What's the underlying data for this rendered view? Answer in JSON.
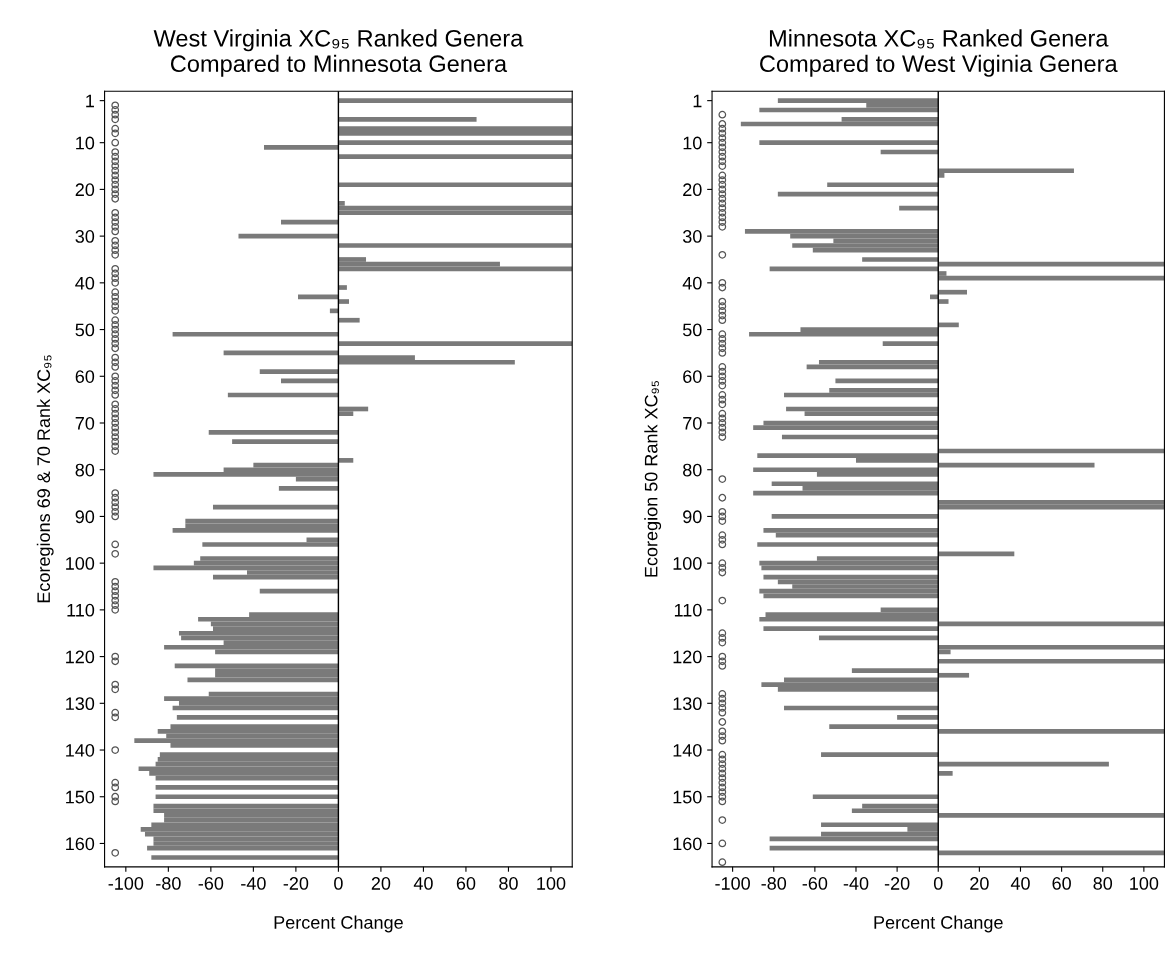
{
  "chart_data": [
    {
      "type": "bar",
      "orientation": "horizontal",
      "title": "West Virginia XC₉₅ Ranked Genera\nCompared to Minnesota Genera",
      "xlabel": "Percent Change",
      "ylabel": "Ecoregions 69 & 70 Rank XC₉₅",
      "xlim": [
        -110,
        110
      ],
      "xticks": [
        -100,
        -80,
        -60,
        -40,
        -20,
        0,
        20,
        40,
        60,
        80,
        100
      ],
      "ylim": [
        165,
        -1
      ],
      "yticks": [
        1,
        10,
        20,
        30,
        40,
        50,
        60,
        70,
        80,
        90,
        100,
        110,
        120,
        130,
        140,
        150,
        160
      ],
      "series": [
        {
          "color": "#7a7a7a",
          "x": [
            1,
            5,
            7,
            8,
            10,
            11,
            13,
            19,
            23,
            24,
            25,
            27,
            30,
            32,
            35,
            36,
            37,
            41,
            43,
            44,
            46,
            48,
            51,
            53,
            55,
            56,
            57,
            59,
            61,
            64,
            67,
            68,
            72,
            74,
            78,
            79,
            80,
            81,
            82,
            84,
            88,
            91,
            92,
            93,
            95,
            96,
            99,
            100,
            101,
            102,
            103,
            106,
            111,
            112,
            113,
            114,
            115,
            116,
            117,
            118,
            119,
            122,
            123,
            124,
            125,
            128,
            129,
            130,
            131,
            133,
            135,
            136,
            137,
            138,
            139,
            141,
            142,
            143,
            144,
            145,
            146,
            148,
            150,
            152,
            153,
            154,
            155,
            156,
            157,
            158,
            159,
            160,
            161,
            163
          ],
          "values": [
            110,
            65,
            110,
            110,
            110,
            -35,
            110,
            110,
            3,
            110,
            110,
            -27,
            -47,
            110,
            13,
            76,
            110,
            4,
            -19,
            5,
            -4,
            10,
            -78,
            110,
            -54,
            36,
            83,
            -37,
            -27,
            -52,
            14,
            7,
            -61,
            -50,
            7,
            -40,
            -54,
            -87,
            -20,
            -28,
            -59,
            -72,
            -72,
            -78,
            -15,
            -64,
            -65,
            -68,
            -87,
            -43,
            -59,
            -37,
            -42,
            -66,
            -60,
            -59,
            -75,
            -74,
            -54,
            -82,
            -58,
            -77,
            -58,
            -58,
            -71,
            -61,
            -82,
            -75,
            -78,
            -76,
            -79,
            -85,
            -81,
            -96,
            -79,
            -84,
            -85,
            -86,
            -94,
            -89,
            -86,
            -86,
            -86,
            -87,
            -87,
            -82,
            -82,
            -88,
            -93,
            -91,
            -87,
            -87,
            -90,
            -88
          ]
        },
        {
          "type": "scatter",
          "color": "#555555",
          "marker": "circle",
          "x": [
            2,
            3,
            4,
            5,
            7,
            8,
            10,
            12,
            13,
            14,
            15,
            16,
            17,
            18,
            19,
            20,
            21,
            22,
            25,
            26,
            27,
            28,
            29,
            31,
            32,
            33,
            34,
            37,
            38,
            39,
            40,
            42,
            43,
            44,
            45,
            46,
            48,
            49,
            50,
            51,
            52,
            53,
            54,
            56,
            57,
            58,
            60,
            61,
            62,
            63,
            64,
            66,
            67,
            68,
            69,
            70,
            71,
            72,
            73,
            74,
            75,
            76,
            85,
            86,
            87,
            88,
            89,
            90,
            96,
            98,
            104,
            105,
            106,
            107,
            108,
            109,
            110,
            120,
            121,
            126,
            127,
            132,
            133,
            140,
            147,
            148,
            150,
            151,
            162
          ],
          "values": [
            -105,
            -105,
            -105,
            -105,
            -105,
            -105,
            -105,
            -105,
            -105,
            -105,
            -105,
            -105,
            -105,
            -105,
            -105,
            -105,
            -105,
            -105,
            -105,
            -105,
            -105,
            -105,
            -105,
            -105,
            -105,
            -105,
            -105,
            -105,
            -105,
            -105,
            -105,
            -105,
            -105,
            -105,
            -105,
            -105,
            -105,
            -105,
            -105,
            -105,
            -105,
            -105,
            -105,
            -105,
            -105,
            -105,
            -105,
            -105,
            -105,
            -105,
            -105,
            -105,
            -105,
            -105,
            -105,
            -105,
            -105,
            -105,
            -105,
            -105,
            -105,
            -105,
            -105,
            -105,
            -105,
            -105,
            -105,
            -105,
            -105,
            -105,
            -105,
            -105,
            -105,
            -105,
            -105,
            -105,
            -105,
            -105,
            -105,
            -105,
            -105,
            -105,
            -105,
            -105,
            -105,
            -105,
            -105,
            -105,
            -105
          ]
        }
      ]
    },
    {
      "type": "bar",
      "orientation": "horizontal",
      "title": "Minnesota XC₉₅ Ranked Genera\nCompared to West Viginia Genera",
      "xlabel": "Percent Change",
      "ylabel": "Ecoregion 50 Rank XC₉₅",
      "xlim": [
        -110,
        110
      ],
      "xticks": [
        -100,
        -80,
        -60,
        -40,
        -20,
        0,
        20,
        40,
        60,
        80,
        100
      ],
      "ylim": [
        165,
        -1
      ],
      "yticks": [
        1,
        10,
        20,
        30,
        40,
        50,
        60,
        70,
        80,
        90,
        100,
        110,
        120,
        130,
        140,
        150,
        160
      ],
      "series": [
        {
          "color": "#7a7a7a",
          "x": [
            1,
            2,
            3,
            5,
            6,
            10,
            12,
            16,
            17,
            19,
            21,
            24,
            29,
            30,
            31,
            32,
            33,
            35,
            36,
            37,
            38,
            39,
            42,
            43,
            44,
            49,
            50,
            51,
            53,
            57,
            58,
            61,
            63,
            64,
            67,
            68,
            70,
            71,
            73,
            76,
            77,
            78,
            79,
            80,
            81,
            83,
            84,
            85,
            87,
            88,
            90,
            93,
            94,
            96,
            98,
            99,
            100,
            101,
            103,
            104,
            105,
            106,
            107,
            110,
            111,
            112,
            113,
            114,
            116,
            118,
            119,
            121,
            123,
            124,
            125,
            126,
            127,
            131,
            133,
            135,
            136,
            141,
            143,
            145,
            150,
            152,
            153,
            154,
            156,
            157,
            158,
            159,
            161,
            162
          ],
          "values": [
            -78,
            -35,
            -87,
            -47,
            -96,
            -87,
            -28,
            66,
            3,
            -54,
            -78,
            -19,
            -94,
            -72,
            -51,
            -71,
            -61,
            -37,
            110,
            -82,
            4,
            110,
            14,
            -4,
            5,
            10,
            -67,
            -92,
            -27,
            -58,
            -64,
            -50,
            -53,
            -75,
            -74,
            -65,
            -85,
            -90,
            -76,
            110,
            -88,
            -40,
            76,
            -90,
            -59,
            -81,
            -66,
            -90,
            110,
            110,
            -81,
            -85,
            -79,
            -88,
            37,
            -59,
            -87,
            -86,
            -85,
            -78,
            -71,
            -87,
            -85,
            -28,
            -84,
            -87,
            110,
            -85,
            -58,
            110,
            6,
            110,
            -42,
            15,
            -75,
            -86,
            -78,
            -75,
            -20,
            -53,
            110,
            -57,
            83,
            7,
            -61,
            -37,
            -42,
            110,
            -57,
            -15,
            -57,
            -82,
            -82,
            110
          ]
        },
        {
          "type": "scatter",
          "color": "#555555",
          "marker": "circle",
          "x": [
            4,
            6,
            7,
            8,
            9,
            10,
            11,
            12,
            13,
            14,
            15,
            17,
            18,
            19,
            20,
            21,
            22,
            23,
            24,
            25,
            26,
            27,
            28,
            34,
            40,
            41,
            44,
            45,
            46,
            47,
            48,
            51,
            52,
            53,
            54,
            55,
            58,
            59,
            60,
            61,
            62,
            64,
            65,
            66,
            68,
            69,
            70,
            71,
            72,
            73,
            82,
            86,
            89,
            90,
            91,
            94,
            95,
            96,
            100,
            101,
            102,
            108,
            115,
            116,
            117,
            120,
            121,
            122,
            128,
            129,
            130,
            131,
            132,
            134,
            136,
            137,
            138,
            141,
            142,
            143,
            144,
            145,
            146,
            147,
            148,
            149,
            150,
            151,
            155,
            160,
            164
          ],
          "values": [
            -105,
            -105,
            -105,
            -105,
            -105,
            -105,
            -105,
            -105,
            -105,
            -105,
            -105,
            -105,
            -105,
            -105,
            -105,
            -105,
            -105,
            -105,
            -105,
            -105,
            -105,
            -105,
            -105,
            -105,
            -105,
            -105,
            -105,
            -105,
            -105,
            -105,
            -105,
            -105,
            -105,
            -105,
            -105,
            -105,
            -105,
            -105,
            -105,
            -105,
            -105,
            -105,
            -105,
            -105,
            -105,
            -105,
            -105,
            -105,
            -105,
            -105,
            -105,
            -105,
            -105,
            -105,
            -105,
            -105,
            -105,
            -105,
            -105,
            -105,
            -105,
            -105,
            -105,
            -105,
            -105,
            -105,
            -105,
            -105,
            -105,
            -105,
            -105,
            -105,
            -105,
            -105,
            -105,
            -105,
            -105,
            -105,
            -105,
            -105,
            -105,
            -105,
            -105,
            -105,
            -105,
            -105,
            -105,
            -105,
            -105,
            -105,
            -105
          ]
        }
      ]
    }
  ]
}
